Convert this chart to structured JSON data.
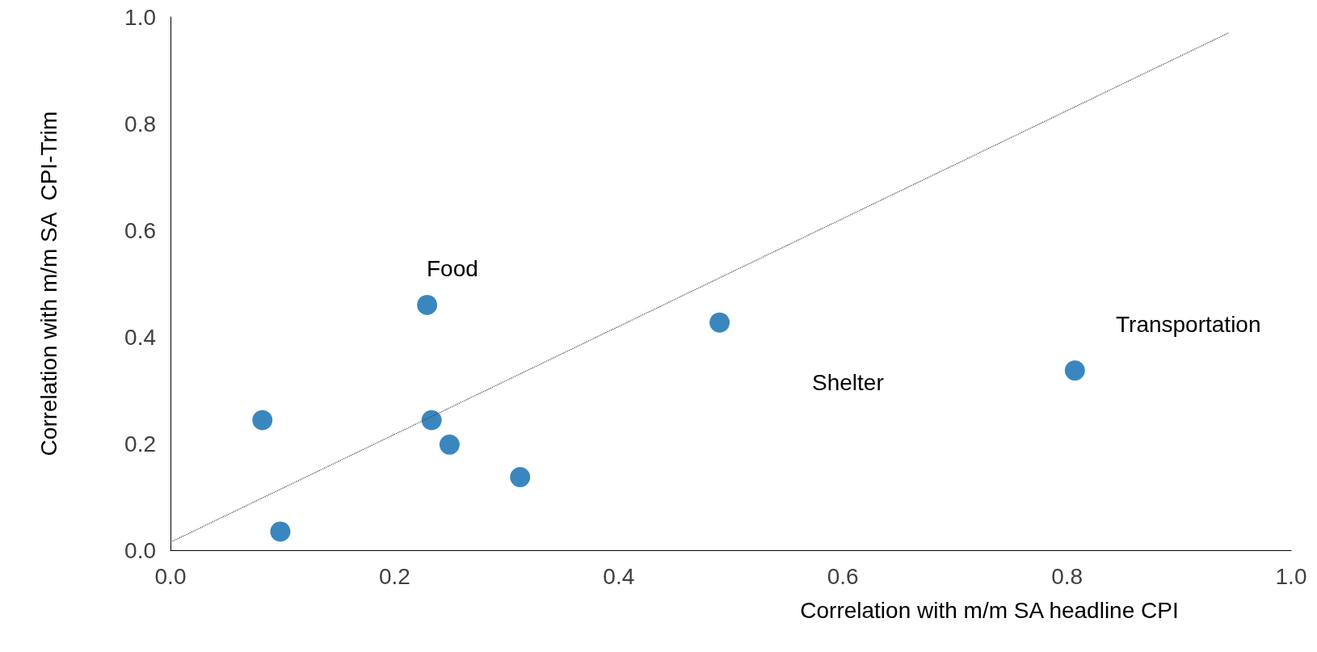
{
  "chart_data": {
    "type": "scatter",
    "xlabel": "Correlation with m/m SA headline CPI",
    "ylabel": "Correlation with m/m SA  CPI-Trim",
    "series": [
      {
        "type": "scatter",
        "color": "#3a87bf",
        "x": [
          0.082,
          0.098,
          0.229,
          0.233,
          0.249,
          0.312,
          0.49,
          0.807
        ],
        "values": [
          0.244,
          0.035,
          0.46,
          0.244,
          0.198,
          0.137,
          0.427,
          0.337
        ]
      },
      {
        "type": "line",
        "color": "#404040",
        "line_style": "dotted",
        "marker": "none",
        "x": [
          0,
          0.944
        ],
        "values": [
          0.015,
          0.97
        ]
      }
    ],
    "annotations": [
      "Food",
      "Shelter",
      "Transportation"
    ],
    "xlim": [
      0,
      1
    ],
    "ylim": [
      0,
      1
    ],
    "xticks": [
      {
        "value": 0,
        "label": "0.0"
      },
      {
        "value": 0.2,
        "label": "0.2"
      },
      {
        "value": 0.4,
        "label": "0.4"
      },
      {
        "value": 0.6,
        "label": "0.6"
      },
      {
        "value": 0.8,
        "label": "0.8"
      },
      {
        "value": 1,
        "label": "1.0"
      }
    ],
    "yticks": [
      {
        "value": 0,
        "label": "0.0"
      },
      {
        "value": 0.2,
        "label": "0.2"
      },
      {
        "value": 0.4,
        "label": "0.4"
      },
      {
        "value": 0.6,
        "label": "0.6"
      },
      {
        "value": 0.8,
        "label": "0.8"
      },
      {
        "value": 1,
        "label": "1.0"
      }
    ],
    "grid": false,
    "marker": "circle"
  }
}
